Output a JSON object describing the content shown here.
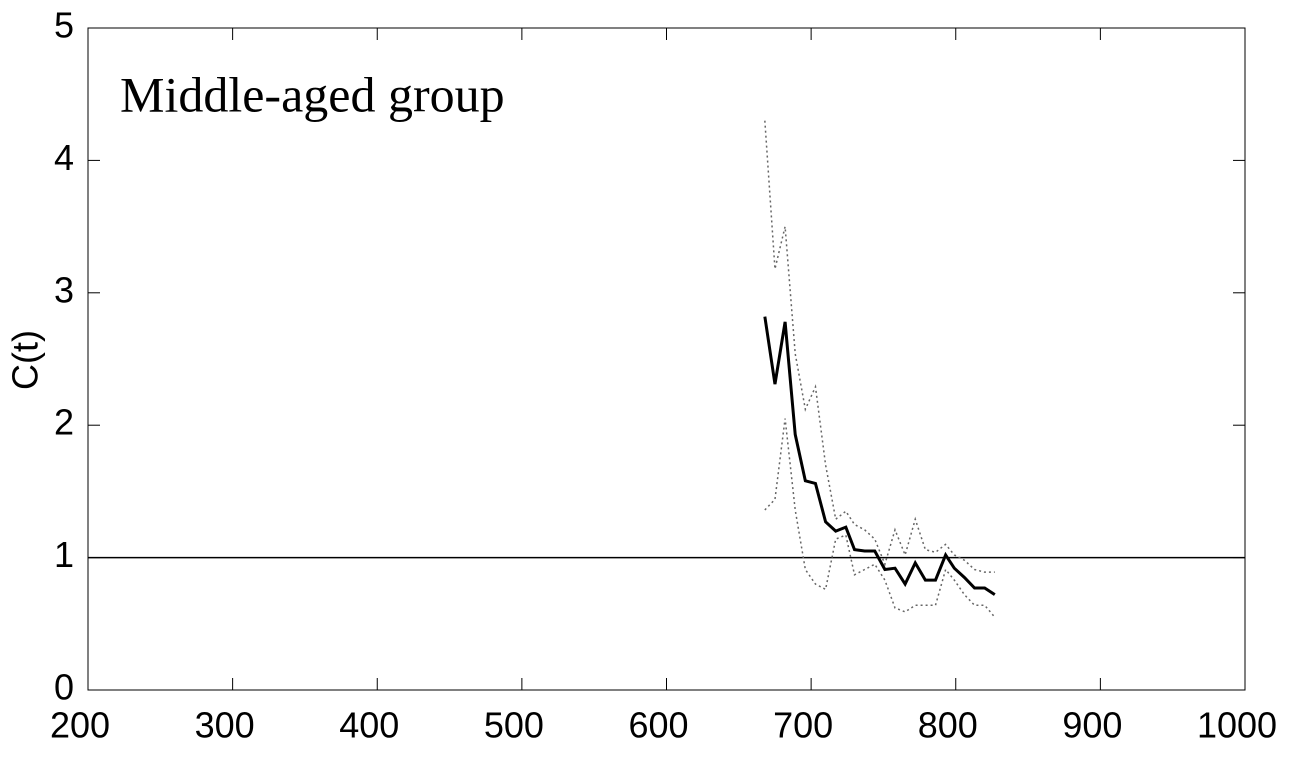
{
  "chart_data": {
    "type": "line",
    "annotation": "Middle-aged group",
    "y_label": "C(t)",
    "x": [
      668,
      675,
      682,
      689,
      696,
      703,
      710,
      717,
      724,
      730,
      737,
      744,
      751,
      758,
      765,
      772,
      779,
      786,
      793,
      799,
      806,
      813,
      820,
      827
    ],
    "series": [
      {
        "color": "#000000",
        "style": "solid",
        "width": 3,
        "values": [
          2.82,
          2.31,
          2.78,
          1.93,
          1.58,
          1.56,
          1.27,
          1.2,
          1.23,
          1.06,
          1.05,
          1.05,
          0.91,
          0.92,
          0.8,
          0.96,
          0.83,
          0.83,
          1.02,
          0.92,
          0.85,
          0.77,
          0.77,
          0.72
        ]
      },
      {
        "color": "#666666",
        "style": "dotted",
        "width": 1.5,
        "values": [
          4.3,
          3.18,
          3.5,
          2.54,
          2.12,
          2.29,
          1.7,
          1.29,
          1.35,
          1.25,
          1.21,
          1.14,
          0.95,
          1.21,
          1.02,
          1.29,
          1.06,
          1.04,
          1.1,
          1.02,
          0.98,
          0.91,
          0.89,
          0.89
        ]
      },
      {
        "color": "#666666",
        "style": "dotted",
        "width": 1.5,
        "values": [
          1.36,
          1.44,
          2.05,
          1.36,
          0.91,
          0.8,
          0.76,
          1.14,
          1.17,
          0.87,
          0.91,
          0.95,
          0.83,
          0.62,
          0.59,
          0.64,
          0.64,
          0.64,
          0.91,
          0.83,
          0.72,
          0.64,
          0.64,
          0.55
        ]
      }
    ],
    "reference_line": 1,
    "xlim": [
      200,
      1000
    ],
    "xticks": [
      200,
      300,
      400,
      500,
      600,
      700,
      800,
      900,
      1000
    ],
    "ylim": [
      0,
      5
    ],
    "yticks": [
      0,
      1,
      2,
      3,
      4,
      5
    ]
  }
}
